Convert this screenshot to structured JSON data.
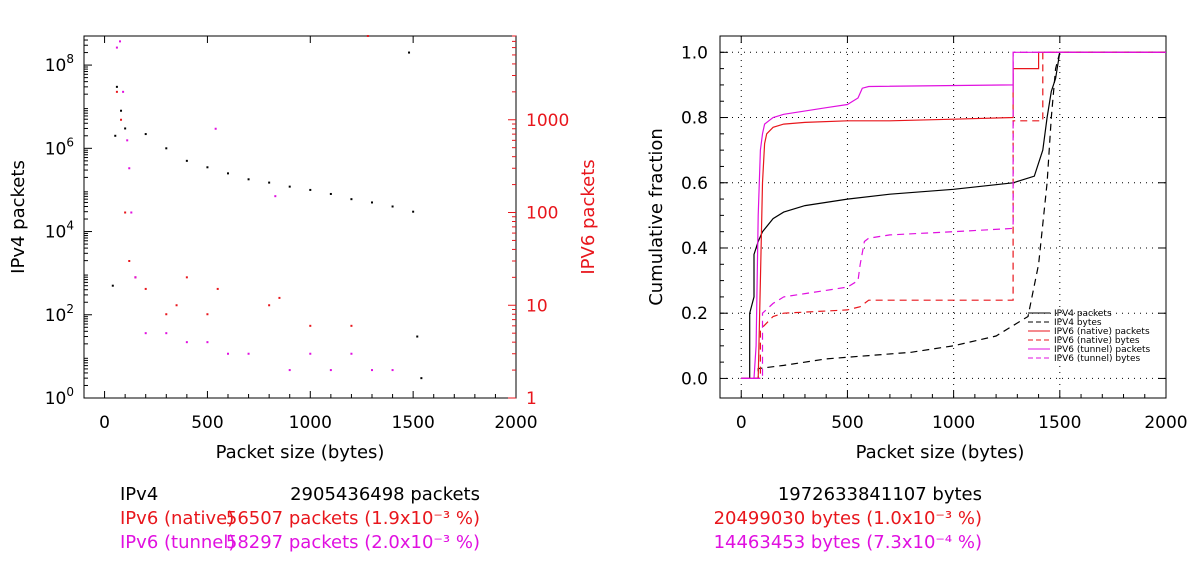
{
  "colors": {
    "ipv4": "#000000",
    "ipv6_native": "#e8161c",
    "ipv6_tunnel": "#e010e0",
    "grid": "#000000"
  },
  "chart_data": [
    {
      "type": "scatter",
      "xlabel": "Packet size (bytes)",
      "ylabel": "IPv4 packets",
      "ylabel_right": "IPV6 packets",
      "xlim": [
        -100,
        2000
      ],
      "xticks": [
        "0",
        "500",
        "1000",
        "1500",
        "2000"
      ],
      "y_left": {
        "scale": "log",
        "lim": [
          1,
          500000000
        ],
        "ticks": [
          "10^0",
          "10^2",
          "10^4",
          "10^6",
          "10^8"
        ]
      },
      "y_right": {
        "scale": "log",
        "lim": [
          1,
          8000
        ],
        "ticks": [
          "1",
          "10",
          "100",
          "1000"
        ]
      },
      "series": [
        {
          "id": "ipv4",
          "axis": "left",
          "points": [
            [
              40,
              500
            ],
            [
              52,
              2000000
            ],
            [
              60,
              30000000
            ],
            [
              80,
              8000000
            ],
            [
              100,
              3000000
            ],
            [
              200,
              2200000
            ],
            [
              300,
              1000000
            ],
            [
              400,
              500000
            ],
            [
              500,
              350000
            ],
            [
              600,
              250000
            ],
            [
              700,
              180000
            ],
            [
              800,
              150000
            ],
            [
              900,
              120000
            ],
            [
              1000,
              100000
            ],
            [
              1100,
              80000
            ],
            [
              1200,
              60000
            ],
            [
              1300,
              50000
            ],
            [
              1400,
              40000
            ],
            [
              1480,
              200000000
            ],
            [
              1500,
              30000
            ],
            [
              1520,
              30
            ],
            [
              1540,
              3
            ]
          ]
        },
        {
          "id": "ipv6_native",
          "axis": "right",
          "points": [
            [
              60,
              2000
            ],
            [
              80,
              1000
            ],
            [
              100,
              100
            ],
            [
              120,
              30
            ],
            [
              150,
              20
            ],
            [
              200,
              15
            ],
            [
              300,
              8
            ],
            [
              350,
              10
            ],
            [
              400,
              20
            ],
            [
              500,
              8
            ],
            [
              550,
              15
            ],
            [
              800,
              10
            ],
            [
              850,
              12
            ],
            [
              1000,
              6
            ],
            [
              1200,
              6
            ],
            [
              1280,
              8000
            ]
          ]
        },
        {
          "id": "ipv6_tunnel",
          "axis": "right",
          "points": [
            [
              60,
              6000
            ],
            [
              75,
              7000
            ],
            [
              90,
              2000
            ],
            [
              110,
              600
            ],
            [
              120,
              300
            ],
            [
              130,
              100
            ],
            [
              150,
              20
            ],
            [
              200,
              5
            ],
            [
              300,
              5
            ],
            [
              400,
              4
            ],
            [
              500,
              4
            ],
            [
              540,
              800
            ],
            [
              600,
              3
            ],
            [
              700,
              3
            ],
            [
              830,
              150
            ],
            [
              900,
              2
            ],
            [
              1000,
              3
            ],
            [
              1100,
              2
            ],
            [
              1200,
              3
            ],
            [
              1300,
              2
            ],
            [
              1400,
              2
            ]
          ]
        }
      ]
    },
    {
      "type": "line",
      "xlabel": "Packet size (bytes)",
      "ylabel": "Cumulative fraction",
      "xlim": [
        -100,
        2000
      ],
      "ylim": [
        -0.06,
        1.05
      ],
      "xticks": [
        "0",
        "500",
        "1000",
        "1500",
        "2000"
      ],
      "yticks": [
        "0.0",
        "0.2",
        "0.4",
        "0.6",
        "0.8",
        "1.0"
      ],
      "grid": true,
      "legend_position": "bottom-right",
      "series": [
        {
          "name": "IPV4 packets",
          "color": "ipv4",
          "dash": false,
          "x": [
            0,
            40,
            40,
            60,
            60,
            80,
            100,
            150,
            200,
            300,
            500,
            700,
            1000,
            1280,
            1380,
            1420,
            1440,
            1460,
            1480,
            1500,
            2000
          ],
          "y": [
            0,
            0,
            0.2,
            0.25,
            0.38,
            0.42,
            0.45,
            0.49,
            0.51,
            0.53,
            0.55,
            0.565,
            0.58,
            0.6,
            0.62,
            0.7,
            0.8,
            0.88,
            0.92,
            1.0,
            1.0
          ]
        },
        {
          "name": "IPV4 bytes",
          "color": "ipv4",
          "dash": true,
          "x": [
            0,
            80,
            80,
            200,
            400,
            600,
            800,
            1000,
            1200,
            1350,
            1400,
            1440,
            1460,
            1480,
            1500,
            2000
          ],
          "y": [
            0,
            0,
            0.03,
            0.04,
            0.06,
            0.07,
            0.08,
            0.1,
            0.13,
            0.19,
            0.35,
            0.6,
            0.8,
            0.95,
            1.0,
            1.0
          ]
        },
        {
          "name": "IPV6 (native) packets",
          "color": "ipv6_native",
          "dash": false,
          "x": [
            0,
            80,
            90,
            100,
            110,
            120,
            150,
            200,
            300,
            500,
            700,
            1000,
            1280,
            1280,
            1400,
            1400,
            1500,
            2000
          ],
          "y": [
            0,
            0,
            0.3,
            0.6,
            0.72,
            0.75,
            0.77,
            0.78,
            0.785,
            0.79,
            0.79,
            0.795,
            0.8,
            0.95,
            0.95,
            1.0,
            1.0,
            1.0
          ]
        },
        {
          "name": "IPV6 (native) bytes",
          "color": "ipv6_native",
          "dash": true,
          "x": [
            0,
            90,
            90,
            150,
            200,
            500,
            560,
            600,
            1280,
            1280,
            1420,
            1420,
            1500,
            2000
          ],
          "y": [
            0,
            0,
            0.15,
            0.19,
            0.2,
            0.21,
            0.22,
            0.24,
            0.24,
            0.79,
            0.79,
            1.0,
            1.0,
            1.0
          ]
        },
        {
          "name": "IPV6 (tunnel) packets",
          "color": "ipv6_tunnel",
          "dash": false,
          "x": [
            0,
            60,
            70,
            80,
            90,
            100,
            110,
            130,
            150,
            200,
            400,
            500,
            550,
            570,
            600,
            1280,
            1280,
            2000
          ],
          "y": [
            0,
            0,
            0.1,
            0.5,
            0.7,
            0.75,
            0.78,
            0.79,
            0.8,
            0.81,
            0.83,
            0.84,
            0.86,
            0.89,
            0.895,
            0.9,
            1.0,
            1.0
          ]
        },
        {
          "name": "IPV6 (tunnel) bytes",
          "color": "ipv6_tunnel",
          "dash": true,
          "x": [
            0,
            100,
            100,
            150,
            200,
            300,
            500,
            550,
            560,
            580,
            600,
            700,
            1000,
            1280,
            1280,
            2000
          ],
          "y": [
            0,
            0,
            0.2,
            0.23,
            0.25,
            0.26,
            0.28,
            0.3,
            0.35,
            0.42,
            0.43,
            0.44,
            0.45,
            0.46,
            1.0,
            1.0
          ]
        }
      ]
    }
  ],
  "summary": [
    {
      "label": "IPv4",
      "packets": "2905436498 packets",
      "bytes": "1972633841107 bytes",
      "color": "ipv4"
    },
    {
      "label": "IPv6 (native)",
      "packets": "56507 packets (1.9x10⁻³ %)",
      "bytes": "20499030 bytes (1.0x10⁻³ %)",
      "color": "ipv6_native"
    },
    {
      "label": "IPv6 (tunnel)",
      "packets": "58297 packets (2.0x10⁻³ %)",
      "bytes": "14463453 bytes (7.3x10⁻⁴ %)",
      "color": "ipv6_tunnel"
    }
  ]
}
